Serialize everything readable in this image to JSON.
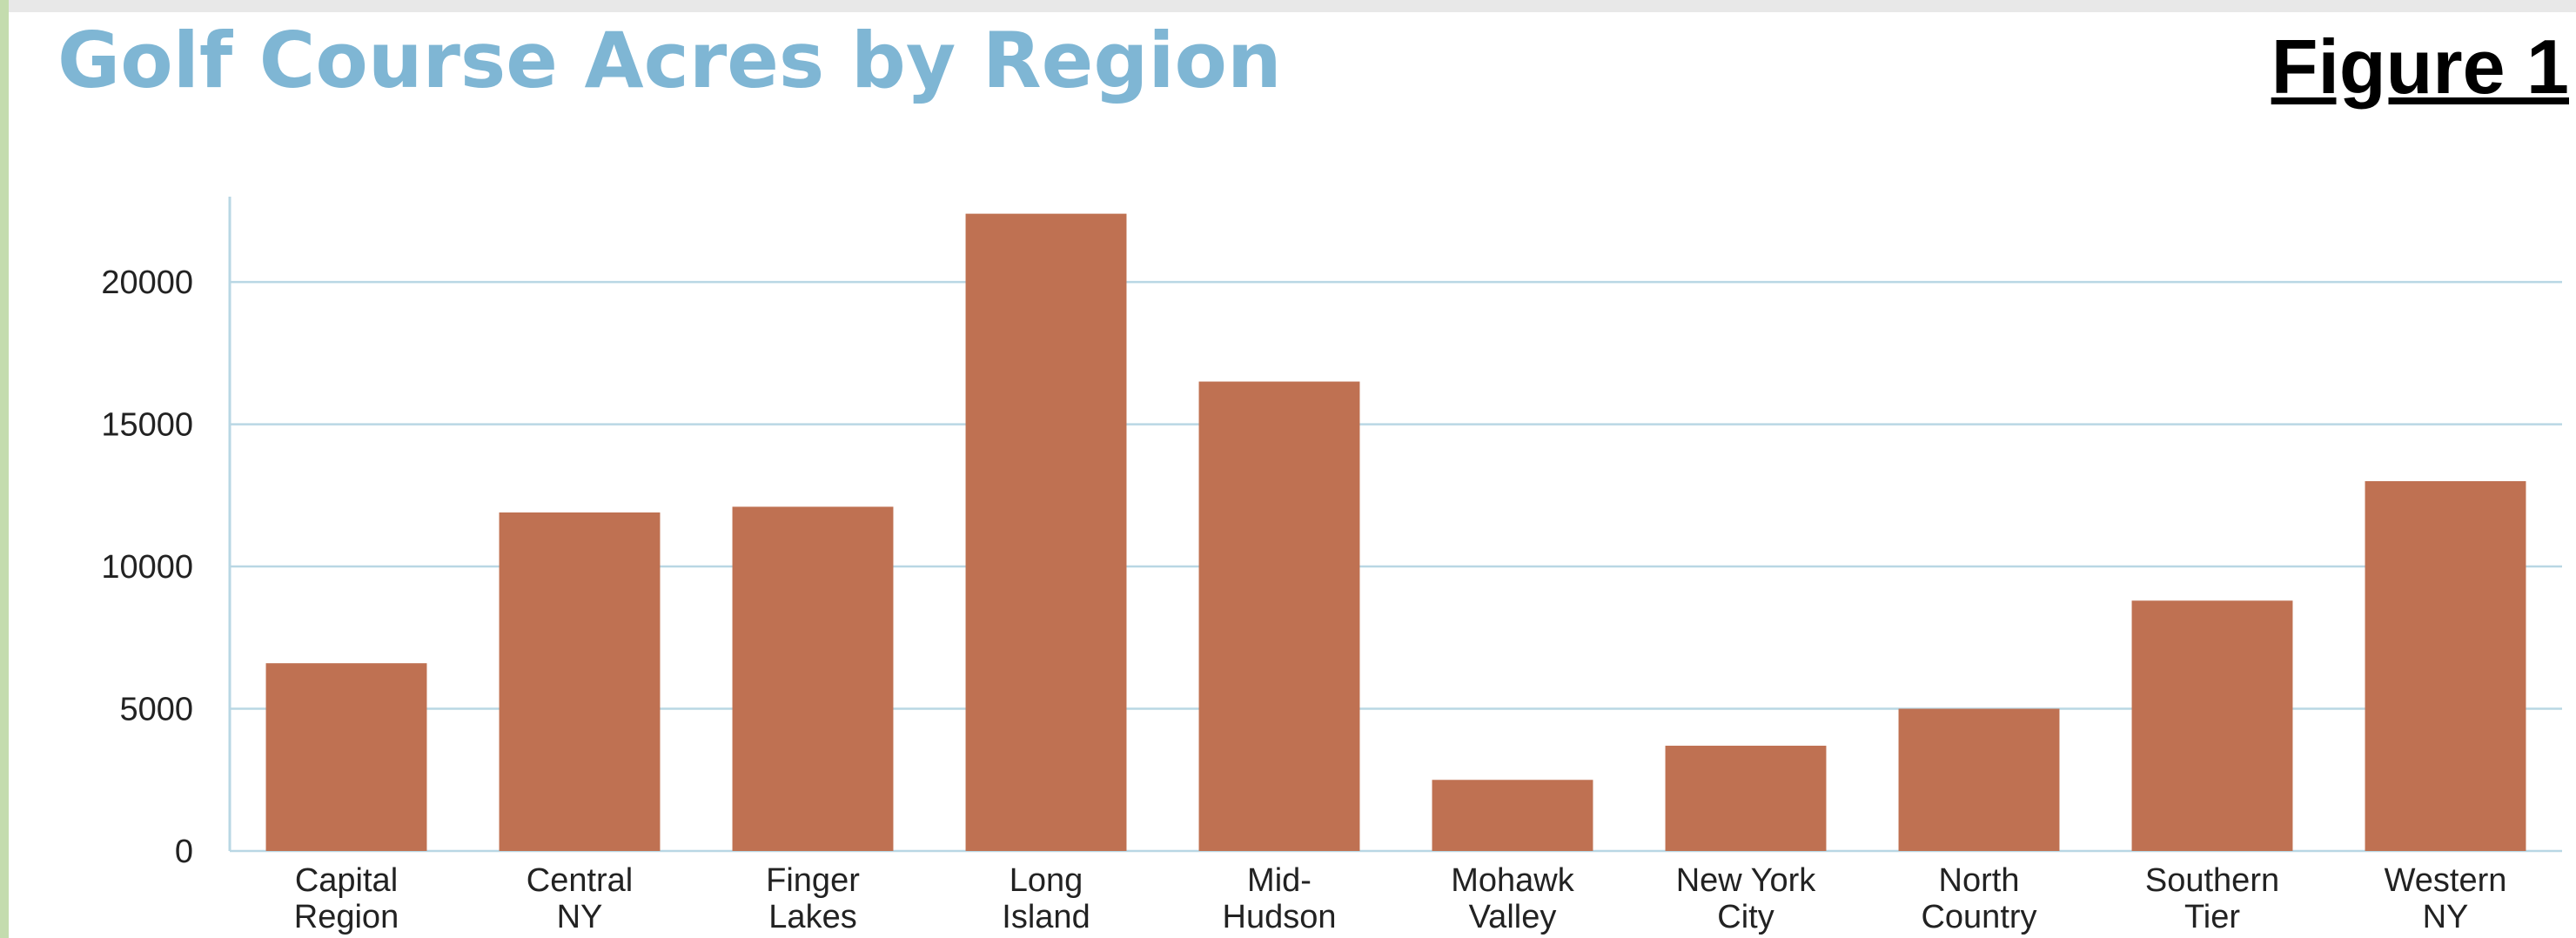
{
  "header": {
    "title": "Golf Course Acres by Region",
    "figure_label": "Figure 1"
  },
  "colors": {
    "bar": "#bf7152",
    "grid": "#b9d7e4",
    "title": "#7fb6d4"
  },
  "chart_data": {
    "type": "bar",
    "title": "Golf Course Acres by Region",
    "xlabel": "",
    "ylabel": "",
    "ylim": [
      0,
      23000
    ],
    "yticks": [
      0,
      5000,
      10000,
      15000,
      20000
    ],
    "grid": true,
    "categories": [
      [
        "Capital",
        "Region"
      ],
      [
        "Central",
        "NY"
      ],
      [
        "Finger",
        "Lakes"
      ],
      [
        "Long",
        "Island"
      ],
      [
        "Mid-",
        "Hudson"
      ],
      [
        "Mohawk",
        "Valley"
      ],
      [
        "New York",
        "City"
      ],
      [
        "North",
        "Country"
      ],
      [
        "Southern",
        "Tier"
      ],
      [
        "Western",
        "NY"
      ]
    ],
    "values": [
      6600,
      11900,
      12100,
      22400,
      16500,
      2500,
      3700,
      5000,
      8800,
      13000
    ]
  }
}
